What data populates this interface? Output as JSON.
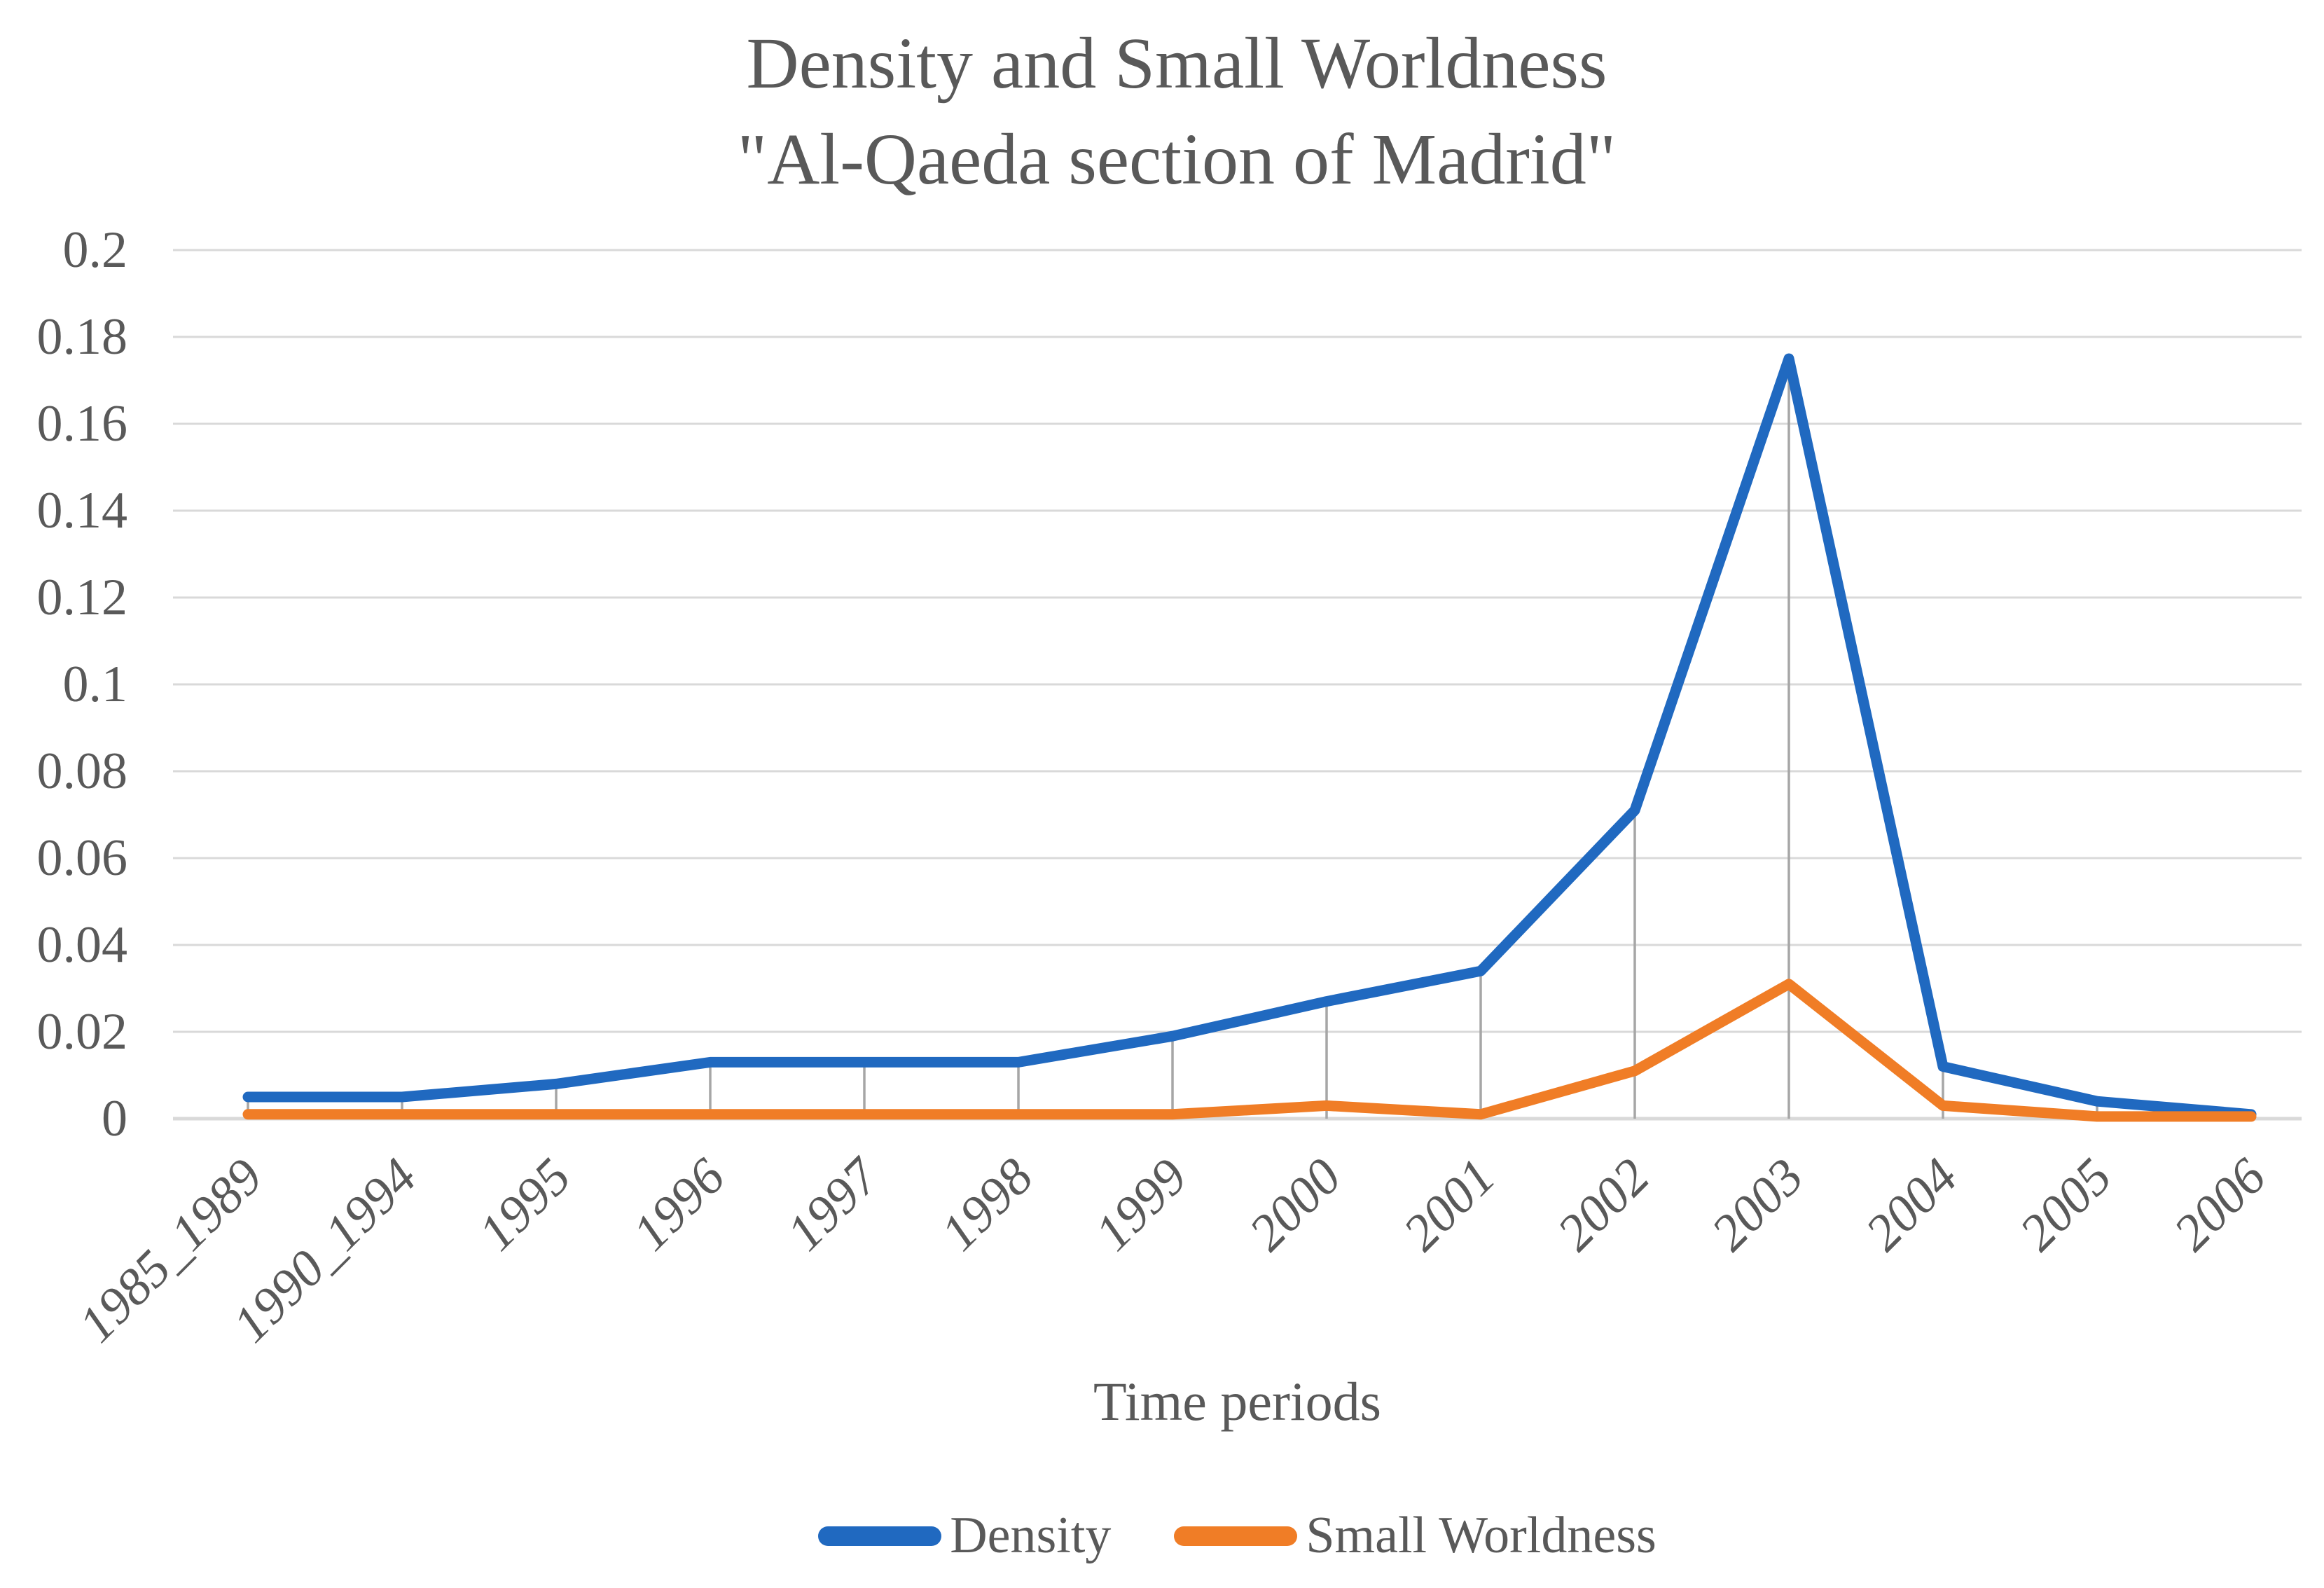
{
  "title": {
    "line1": "Density and Small Worldness",
    "line2": "\"Al-Qaeda section of Madrid\""
  },
  "x_axis_title": "Time periods",
  "chart_data": {
    "type": "line",
    "title": "Density and Small Worldness \"Al-Qaeda section of Madrid\"",
    "xlabel": "Time periods",
    "ylabel": "",
    "ylim": [
      0,
      0.2
    ],
    "grid": true,
    "drop_lines": true,
    "legend_position": "bottom",
    "categories": [
      "1985_1989",
      "1990_1994",
      "1995",
      "1996",
      "1997",
      "1998",
      "1999",
      "2000",
      "2001",
      "2002",
      "2003",
      "2004",
      "2005",
      "2006"
    ],
    "y_tick_values": [
      0.2,
      0.18,
      0.16,
      0.14,
      0.12,
      0.1,
      0.08,
      0.06,
      0.04,
      0.02,
      0
    ],
    "y_tick_labels": [
      "0.2",
      "0.18",
      "0.16",
      "0.14",
      "0.12",
      "0.1",
      "0.08",
      "0.06",
      "0.04",
      "0.02",
      "0"
    ],
    "series": [
      {
        "name": "Density",
        "color": "#2069C0",
        "values": [
          0.005,
          0.005,
          0.008,
          0.013,
          0.013,
          0.013,
          0.019,
          0.027,
          0.034,
          0.071,
          0.175,
          0.012,
          0.004,
          0.001
        ]
      },
      {
        "name": "Small Worldness",
        "color": "#F07D26",
        "values": [
          0.001,
          0.001,
          0.001,
          0.001,
          0.001,
          0.001,
          0.001,
          0.003,
          0.001,
          0.011,
          0.031,
          0.003,
          0.0005,
          0.0005
        ]
      }
    ]
  },
  "colors": {
    "gridline": "#D9D9D9",
    "axis_line": "#D9D9D9",
    "drop_line": "#A6A6A6",
    "text": "#595959",
    "background": "#FFFFFF"
  }
}
